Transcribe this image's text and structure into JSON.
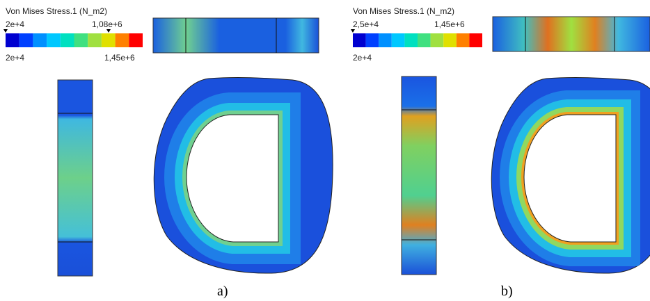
{
  "panels": [
    {
      "legend": {
        "title": "Von Mises Stress.1 (N_m2)",
        "min_label": "2e+4",
        "marker_label": "1,08e+6",
        "bottom_min_label": "2e+4",
        "bottom_max_label": "1,45e+6"
      },
      "caption": "a)"
    },
    {
      "legend": {
        "title": "Von Mises Stress.1 (N_m2)",
        "min_label": "2,5e+4",
        "marker_label": "1,45e+6",
        "bottom_min_label": "2e+4"
      },
      "caption": "b)"
    }
  ]
}
